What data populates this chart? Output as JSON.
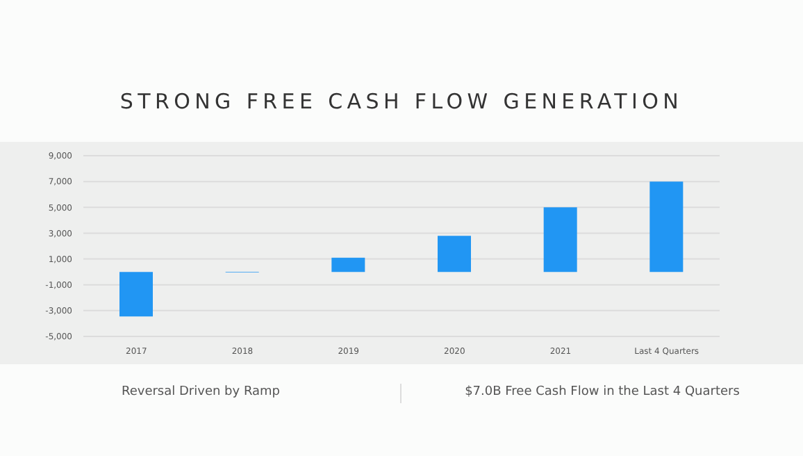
{
  "chart_data": {
    "type": "bar",
    "title": "STRONG FREE CASH FLOW GENERATION",
    "categories": [
      "2017",
      "2018",
      "2019",
      "2020",
      "2021",
      "Last 4 Quarters"
    ],
    "values": [
      -3450,
      -50,
      1100,
      2800,
      5000,
      7000
    ],
    "color": "#2196f3",
    "ylim": [
      -5000,
      9000
    ],
    "yticks": [
      {
        "value": -5000,
        "label": "-5,000"
      },
      {
        "value": -3000,
        "label": "-3,000"
      },
      {
        "value": -1000,
        "label": "-1,000"
      },
      {
        "value": 1000,
        "label": "1,000"
      },
      {
        "value": 3000,
        "label": "3,000"
      },
      {
        "value": 5000,
        "label": "5,000"
      },
      {
        "value": 7000,
        "label": "7,000"
      },
      {
        "value": 9000,
        "label": "9,000"
      }
    ],
    "grid": "y",
    "annotations": [
      "Reversal Driven by Ramp",
      "$7.0B Free Cash Flow in the Last 4 Quarters"
    ]
  }
}
